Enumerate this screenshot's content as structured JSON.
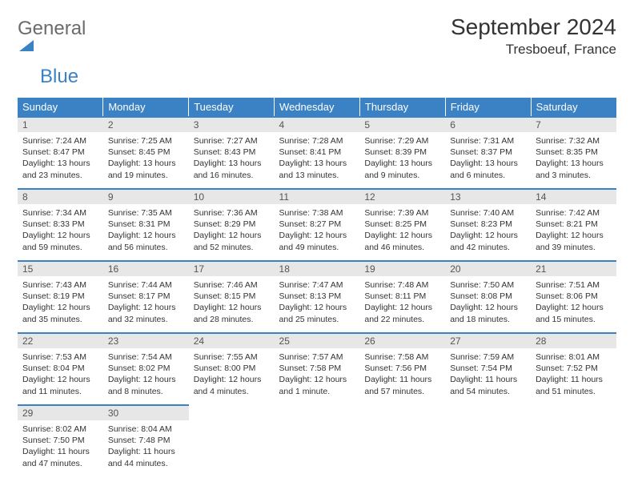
{
  "logo": {
    "text1": "General",
    "text2": "Blue"
  },
  "title": "September 2024",
  "location": "Tresboeuf, France",
  "colors": {
    "header_bg": "#3b82c4",
    "daynum_bg": "#e7e7e7",
    "row_border": "#3b82c4",
    "text": "#333333",
    "logo_gray": "#6b6b6b",
    "logo_blue": "#3b82c4"
  },
  "weekdays": [
    "Sunday",
    "Monday",
    "Tuesday",
    "Wednesday",
    "Thursday",
    "Friday",
    "Saturday"
  ],
  "days": [
    {
      "n": "1",
      "sr": "7:24 AM",
      "ss": "8:47 PM",
      "dl": "13 hours and 23 minutes."
    },
    {
      "n": "2",
      "sr": "7:25 AM",
      "ss": "8:45 PM",
      "dl": "13 hours and 19 minutes."
    },
    {
      "n": "3",
      "sr": "7:27 AM",
      "ss": "8:43 PM",
      "dl": "13 hours and 16 minutes."
    },
    {
      "n": "4",
      "sr": "7:28 AM",
      "ss": "8:41 PM",
      "dl": "13 hours and 13 minutes."
    },
    {
      "n": "5",
      "sr": "7:29 AM",
      "ss": "8:39 PM",
      "dl": "13 hours and 9 minutes."
    },
    {
      "n": "6",
      "sr": "7:31 AM",
      "ss": "8:37 PM",
      "dl": "13 hours and 6 minutes."
    },
    {
      "n": "7",
      "sr": "7:32 AM",
      "ss": "8:35 PM",
      "dl": "13 hours and 3 minutes."
    },
    {
      "n": "8",
      "sr": "7:34 AM",
      "ss": "8:33 PM",
      "dl": "12 hours and 59 minutes."
    },
    {
      "n": "9",
      "sr": "7:35 AM",
      "ss": "8:31 PM",
      "dl": "12 hours and 56 minutes."
    },
    {
      "n": "10",
      "sr": "7:36 AM",
      "ss": "8:29 PM",
      "dl": "12 hours and 52 minutes."
    },
    {
      "n": "11",
      "sr": "7:38 AM",
      "ss": "8:27 PM",
      "dl": "12 hours and 49 minutes."
    },
    {
      "n": "12",
      "sr": "7:39 AM",
      "ss": "8:25 PM",
      "dl": "12 hours and 46 minutes."
    },
    {
      "n": "13",
      "sr": "7:40 AM",
      "ss": "8:23 PM",
      "dl": "12 hours and 42 minutes."
    },
    {
      "n": "14",
      "sr": "7:42 AM",
      "ss": "8:21 PM",
      "dl": "12 hours and 39 minutes."
    },
    {
      "n": "15",
      "sr": "7:43 AM",
      "ss": "8:19 PM",
      "dl": "12 hours and 35 minutes."
    },
    {
      "n": "16",
      "sr": "7:44 AM",
      "ss": "8:17 PM",
      "dl": "12 hours and 32 minutes."
    },
    {
      "n": "17",
      "sr": "7:46 AM",
      "ss": "8:15 PM",
      "dl": "12 hours and 28 minutes."
    },
    {
      "n": "18",
      "sr": "7:47 AM",
      "ss": "8:13 PM",
      "dl": "12 hours and 25 minutes."
    },
    {
      "n": "19",
      "sr": "7:48 AM",
      "ss": "8:11 PM",
      "dl": "12 hours and 22 minutes."
    },
    {
      "n": "20",
      "sr": "7:50 AM",
      "ss": "8:08 PM",
      "dl": "12 hours and 18 minutes."
    },
    {
      "n": "21",
      "sr": "7:51 AM",
      "ss": "8:06 PM",
      "dl": "12 hours and 15 minutes."
    },
    {
      "n": "22",
      "sr": "7:53 AM",
      "ss": "8:04 PM",
      "dl": "12 hours and 11 minutes."
    },
    {
      "n": "23",
      "sr": "7:54 AM",
      "ss": "8:02 PM",
      "dl": "12 hours and 8 minutes."
    },
    {
      "n": "24",
      "sr": "7:55 AM",
      "ss": "8:00 PM",
      "dl": "12 hours and 4 minutes."
    },
    {
      "n": "25",
      "sr": "7:57 AM",
      "ss": "7:58 PM",
      "dl": "12 hours and 1 minute."
    },
    {
      "n": "26",
      "sr": "7:58 AM",
      "ss": "7:56 PM",
      "dl": "11 hours and 57 minutes."
    },
    {
      "n": "27",
      "sr": "7:59 AM",
      "ss": "7:54 PM",
      "dl": "11 hours and 54 minutes."
    },
    {
      "n": "28",
      "sr": "8:01 AM",
      "ss": "7:52 PM",
      "dl": "11 hours and 51 minutes."
    },
    {
      "n": "29",
      "sr": "8:02 AM",
      "ss": "7:50 PM",
      "dl": "11 hours and 47 minutes."
    },
    {
      "n": "30",
      "sr": "8:04 AM",
      "ss": "7:48 PM",
      "dl": "11 hours and 44 minutes."
    }
  ],
  "labels": {
    "sunrise": "Sunrise:",
    "sunset": "Sunset:",
    "daylight": "Daylight:"
  }
}
